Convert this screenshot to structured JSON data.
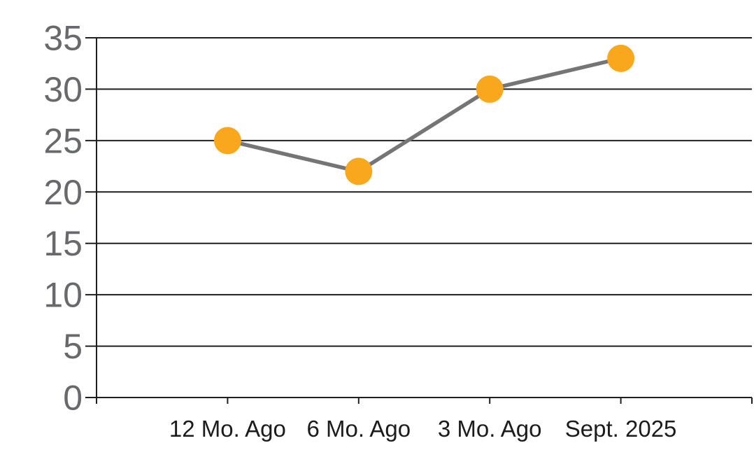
{
  "chart_data": {
    "type": "line",
    "categories": [
      "12 Mo. Ago",
      "6 Mo. Ago",
      "3 Mo. Ago",
      "Sept. 2025"
    ],
    "values": [
      25,
      22,
      30,
      33
    ],
    "title": "",
    "xlabel": "",
    "ylabel": "",
    "ylim": [
      0,
      35
    ],
    "yticks": [
      0,
      5,
      10,
      15,
      20,
      25,
      30,
      35
    ],
    "ytick_labels": [
      "0",
      "5",
      "10",
      "15",
      "20",
      "25",
      "30",
      "35"
    ],
    "grid": true,
    "legend": false,
    "colors": {
      "marker": "#F9A81E",
      "line": "#757575",
      "grid": "#1F1F1F",
      "axis": "#1F1F1F",
      "y_tick_label": "#67696C",
      "x_tick_label": "#1C1C1C",
      "background": "#FFFFFF"
    }
  }
}
